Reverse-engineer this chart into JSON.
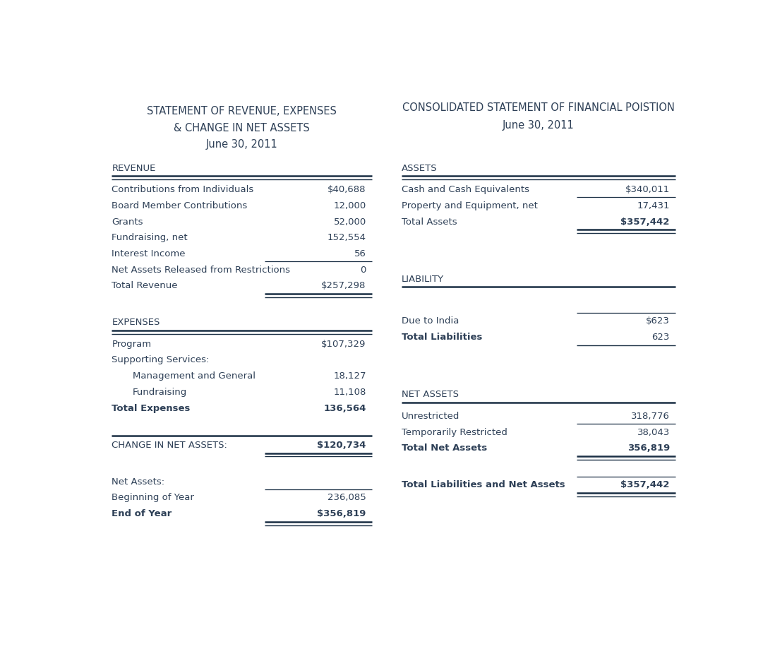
{
  "bg_color": "#ffffff",
  "text_color": "#2e4057",
  "left_title1": "STATEMENT OF REVENUE, EXPENSES",
  "left_title2": "& CHANGE IN NET ASSETS",
  "left_title3": "June 30, 2011",
  "right_title1": "CONSOLIDATED STATEMENT OF FINANCIAL POISTION",
  "right_title2": "June 30, 2011",
  "font_size": 9.5,
  "title_font_size": 10.5,
  "header_font_size": 9.5,
  "left_items": [
    {
      "type": "header",
      "label": "REVENUE",
      "value": "",
      "bl": false,
      "bv": false,
      "indent": 0,
      "line_above_val": false,
      "double_below": true,
      "double_below_full": false,
      "single_below": false
    },
    {
      "type": "row",
      "label": "Contributions from Individuals",
      "value": "$40,688",
      "bl": false,
      "bv": false,
      "indent": 0,
      "line_above_val": false,
      "double_below": false,
      "double_below_full": false,
      "single_below": false
    },
    {
      "type": "row",
      "label": "Board Member Contributions",
      "value": "12,000",
      "bl": false,
      "bv": false,
      "indent": 0,
      "line_above_val": false,
      "double_below": false,
      "double_below_full": false,
      "single_below": false
    },
    {
      "type": "row",
      "label": "Grants",
      "value": "52,000",
      "bl": false,
      "bv": false,
      "indent": 0,
      "line_above_val": false,
      "double_below": false,
      "double_below_full": false,
      "single_below": false
    },
    {
      "type": "row",
      "label": "Fundraising, net",
      "value": "152,554",
      "bl": false,
      "bv": false,
      "indent": 0,
      "line_above_val": false,
      "double_below": false,
      "double_below_full": false,
      "single_below": false
    },
    {
      "type": "row",
      "label": "Interest Income",
      "value": "56",
      "bl": false,
      "bv": false,
      "indent": 0,
      "line_above_val": false,
      "double_below": false,
      "double_below_full": false,
      "single_below": false
    },
    {
      "type": "row",
      "label": "Net Assets Released from Restrictions",
      "value": "0",
      "bl": false,
      "bv": false,
      "indent": 0,
      "line_above_val": true,
      "double_below": false,
      "double_below_full": false,
      "single_below": false
    },
    {
      "type": "row",
      "label": "Total Revenue",
      "value": "$257,298",
      "bl": false,
      "bv": false,
      "indent": 0,
      "line_above_val": false,
      "double_below": false,
      "double_below_full": true,
      "single_below": false
    },
    {
      "type": "spacer",
      "label": "",
      "value": "",
      "bl": false,
      "bv": false,
      "indent": 0,
      "line_above_val": false,
      "double_below": false,
      "double_below_full": false,
      "single_below": false
    },
    {
      "type": "header",
      "label": "EXPENSES",
      "value": "",
      "bl": false,
      "bv": false,
      "indent": 0,
      "line_above_val": false,
      "double_below": true,
      "double_below_full": false,
      "single_below": false
    },
    {
      "type": "row",
      "label": "Program",
      "value": "$107,329",
      "bl": false,
      "bv": false,
      "indent": 0,
      "line_above_val": false,
      "double_below": false,
      "double_below_full": false,
      "single_below": false
    },
    {
      "type": "row",
      "label": "Supporting Services:",
      "value": "",
      "bl": false,
      "bv": false,
      "indent": 0,
      "line_above_val": false,
      "double_below": false,
      "double_below_full": false,
      "single_below": false
    },
    {
      "type": "row",
      "label": "Management and General",
      "value": "18,127",
      "bl": false,
      "bv": false,
      "indent": 1,
      "line_above_val": false,
      "double_below": false,
      "double_below_full": false,
      "single_below": false
    },
    {
      "type": "row",
      "label": "Fundraising",
      "value": "11,108",
      "bl": false,
      "bv": false,
      "indent": 1,
      "line_above_val": false,
      "double_below": false,
      "double_below_full": false,
      "single_below": false
    },
    {
      "type": "row",
      "label": "Total Expenses",
      "value": "136,564",
      "bl": true,
      "bv": true,
      "indent": 0,
      "line_above_val": false,
      "double_below": false,
      "double_below_full": false,
      "single_below": false
    },
    {
      "type": "spacer",
      "label": "",
      "value": "",
      "bl": false,
      "bv": false,
      "indent": 0,
      "line_above_val": false,
      "double_below": false,
      "double_below_full": false,
      "single_below": false
    },
    {
      "type": "header_row",
      "label": "CHANGE IN NET ASSETS:",
      "value": "$120,734",
      "bl": false,
      "bv": true,
      "indent": 0,
      "line_above_val": false,
      "double_below": false,
      "double_below_full": true,
      "single_below": false
    },
    {
      "type": "spacer",
      "label": "",
      "value": "",
      "bl": false,
      "bv": false,
      "indent": 0,
      "line_above_val": false,
      "double_below": false,
      "double_below_full": false,
      "single_below": false
    },
    {
      "type": "row",
      "label": "Net Assets:",
      "value": "",
      "bl": false,
      "bv": false,
      "indent": 0,
      "line_above_val": false,
      "double_below": false,
      "double_below_full": false,
      "single_below": false
    },
    {
      "type": "row",
      "label": "Beginning of Year",
      "value": "236,085",
      "bl": false,
      "bv": false,
      "indent": 0,
      "line_above_val": true,
      "double_below": false,
      "double_below_full": false,
      "single_below": false
    },
    {
      "type": "row",
      "label": "End of Year",
      "value": "$356,819",
      "bl": true,
      "bv": true,
      "indent": 0,
      "line_above_val": false,
      "double_below": false,
      "double_below_full": true,
      "single_below": false
    }
  ],
  "right_items": [
    {
      "type": "header",
      "label": "ASSETS",
      "value": "",
      "bl": false,
      "bv": false,
      "indent": 0,
      "line_above_val": false,
      "double_below": true,
      "double_below_full": false,
      "single_below": false
    },
    {
      "type": "row",
      "label": "Cash and Cash Equivalents",
      "value": "$340,011",
      "bl": false,
      "bv": false,
      "indent": 0,
      "line_above_val": false,
      "double_below": false,
      "double_below_full": false,
      "single_below": false
    },
    {
      "type": "row",
      "label": "Property and Equipment, net",
      "value": "17,431",
      "bl": false,
      "bv": false,
      "indent": 0,
      "line_above_val": true,
      "double_below": false,
      "double_below_full": false,
      "single_below": false
    },
    {
      "type": "row",
      "label": "Total Assets",
      "value": "$357,442",
      "bl": false,
      "bv": true,
      "indent": 0,
      "line_above_val": false,
      "double_below": false,
      "double_below_full": true,
      "single_below": false
    },
    {
      "type": "spacer",
      "label": "",
      "value": "",
      "bl": false,
      "bv": false,
      "indent": 0,
      "line_above_val": false,
      "double_below": false,
      "double_below_full": false,
      "single_below": false
    },
    {
      "type": "spacer",
      "label": "",
      "value": "",
      "bl": false,
      "bv": false,
      "indent": 0,
      "line_above_val": false,
      "double_below": false,
      "double_below_full": false,
      "single_below": false
    },
    {
      "type": "header",
      "label": "LIABILITY",
      "value": "",
      "bl": false,
      "bv": false,
      "indent": 0,
      "line_above_val": false,
      "double_below": false,
      "double_below_full": false,
      "single_below": true
    },
    {
      "type": "spacer",
      "label": "",
      "value": "",
      "bl": false,
      "bv": false,
      "indent": 0,
      "line_above_val": false,
      "double_below": false,
      "double_below_full": false,
      "single_below": false
    },
    {
      "type": "row",
      "label": "Due to India",
      "value": "$623",
      "bl": false,
      "bv": false,
      "indent": 0,
      "line_above_val": true,
      "double_below": false,
      "double_below_full": false,
      "single_below": false
    },
    {
      "type": "row",
      "label": "Total Liabilities",
      "value": "623",
      "bl": true,
      "bv": false,
      "indent": 0,
      "line_above_val": false,
      "double_below": false,
      "double_below_full": false,
      "single_below": true
    },
    {
      "type": "spacer",
      "label": "",
      "value": "",
      "bl": false,
      "bv": false,
      "indent": 0,
      "line_above_val": false,
      "double_below": false,
      "double_below_full": false,
      "single_below": false
    },
    {
      "type": "spacer",
      "label": "",
      "value": "",
      "bl": false,
      "bv": false,
      "indent": 0,
      "line_above_val": false,
      "double_below": false,
      "double_below_full": false,
      "single_below": false
    },
    {
      "type": "header",
      "label": "NET ASSETS",
      "value": "",
      "bl": false,
      "bv": false,
      "indent": 0,
      "line_above_val": false,
      "double_below": false,
      "double_below_full": false,
      "single_below": true
    },
    {
      "type": "row",
      "label": "Unrestricted",
      "value": "318,776",
      "bl": false,
      "bv": false,
      "indent": 0,
      "line_above_val": false,
      "double_below": false,
      "double_below_full": false,
      "single_below": false
    },
    {
      "type": "row",
      "label": "Temporarily Restricted",
      "value": "38,043",
      "bl": false,
      "bv": false,
      "indent": 0,
      "line_above_val": true,
      "double_below": false,
      "double_below_full": false,
      "single_below": false
    },
    {
      "type": "row",
      "label": "Total Net Assets",
      "value": "356,819",
      "bl": true,
      "bv": true,
      "indent": 0,
      "line_above_val": false,
      "double_below": false,
      "double_below_full": true,
      "single_below": false
    },
    {
      "type": "spacer",
      "label": "",
      "value": "",
      "bl": false,
      "bv": false,
      "indent": 0,
      "line_above_val": false,
      "double_below": false,
      "double_below_full": false,
      "single_below": false
    },
    {
      "type": "row",
      "label": "Total Liabilities and Net Assets",
      "value": "$357,442",
      "bl": true,
      "bv": true,
      "indent": 0,
      "line_above_val": true,
      "double_below": false,
      "double_below_full": true,
      "single_below": false
    }
  ]
}
